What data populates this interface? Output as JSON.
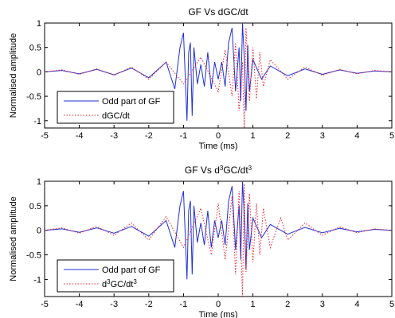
{
  "colors": {
    "odd_gf": "#1f2fd6",
    "derivative": "#e8242f",
    "axes": "#000000"
  },
  "chart_data": [
    {
      "type": "line",
      "title": "GF Vs dGC/dt",
      "title_parts": [
        {
          "text": "GF Vs dGC/dt"
        }
      ],
      "xlabel": "Time (ms)",
      "ylabel": "Normalised amplitude",
      "xlim": [
        -5,
        5
      ],
      "ylim": [
        -1.15,
        1
      ],
      "xticks": [
        -5,
        -4,
        -3,
        -2,
        -1,
        0,
        1,
        2,
        3,
        4,
        5
      ],
      "yticks": [
        -1,
        -0.5,
        0,
        0.5,
        1
      ],
      "grid": false,
      "legend_position": "bottom-left",
      "series": [
        {
          "name": "Odd part of GF",
          "name_parts": [
            {
              "text": "Odd part of GF"
            }
          ],
          "style": "solid",
          "color": "#1f2fd6",
          "x": [
            -5,
            -4.5,
            -4,
            -3.5,
            -3,
            -2.5,
            -2,
            -1.5,
            -1.25,
            -1.1,
            -1,
            -0.9,
            -0.85,
            -0.8,
            -0.75,
            -0.7,
            -0.6,
            -0.5,
            -0.4,
            -0.3,
            -0.2,
            -0.1,
            0,
            0.1,
            0.2,
            0.3,
            0.4,
            0.5,
            0.6,
            0.65,
            0.7,
            0.75,
            0.8,
            0.85,
            0.9,
            1,
            1.25,
            1.5,
            2,
            2.5,
            3,
            3.5,
            4,
            4.5,
            5
          ],
          "y": [
            0,
            0.03,
            -0.04,
            0.05,
            -0.06,
            0.08,
            -0.12,
            0.2,
            -0.35,
            0.5,
            0.8,
            -1.0,
            0.4,
            0.6,
            -0.9,
            0.5,
            -0.25,
            0.15,
            -0.3,
            0.4,
            -0.35,
            0.2,
            -0.15,
            0.2,
            -0.3,
            0.6,
            0.9,
            -0.4,
            0.5,
            -0.6,
            1.0,
            0.3,
            -0.8,
            0.55,
            -0.4,
            0.25,
            -0.15,
            0.12,
            -0.08,
            0.06,
            -0.05,
            0.04,
            -0.03,
            0.02,
            0
          ]
        },
        {
          "name": "dGC/dt",
          "name_parts": [
            {
              "text": "dGC/dt"
            }
          ],
          "style": "dotted",
          "color": "#e8242f",
          "x": [
            -5,
            -4.5,
            -4,
            -3.5,
            -3,
            -2.5,
            -2,
            -1.5,
            -1,
            -0.5,
            0,
            0.2,
            0.4,
            0.5,
            0.6,
            0.7,
            0.75,
            0.8,
            0.9,
            1.0,
            1.1,
            1.2,
            1.3,
            1.5,
            2,
            2.5,
            3,
            3.5,
            4,
            4.5,
            5
          ],
          "y": [
            0,
            0.04,
            -0.05,
            0.06,
            -0.07,
            0.1,
            -0.15,
            0.2,
            -0.25,
            0.3,
            -0.4,
            0.45,
            -0.5,
            0.6,
            -0.8,
            0.2,
            -1.15,
            0.9,
            -0.6,
            0.5,
            -0.55,
            0.4,
            -0.3,
            0.25,
            -0.15,
            0.1,
            -0.07,
            0.05,
            -0.04,
            0.03,
            0
          ]
        }
      ]
    },
    {
      "type": "line",
      "title": "GF Vs d3GC/dt3",
      "title_parts": [
        {
          "text": "GF Vs d"
        },
        {
          "text": "3",
          "sup": true
        },
        {
          "text": "GC/dt"
        },
        {
          "text": "3",
          "sup": true
        }
      ],
      "xlabel": "Time (ms)",
      "ylabel": "Normalised amplitude",
      "xlim": [
        -5,
        5
      ],
      "ylim": [
        -1.35,
        1
      ],
      "xticks": [
        -5,
        -4,
        -3,
        -2,
        -1,
        0,
        1,
        2,
        3,
        4,
        5
      ],
      "yticks": [
        -1,
        -0.5,
        0,
        0.5,
        1
      ],
      "grid": false,
      "legend_position": "bottom-left",
      "series": [
        {
          "name": "Odd part of GF",
          "name_parts": [
            {
              "text": "Odd part of GF"
            }
          ],
          "style": "solid",
          "color": "#1f2fd6",
          "x": [
            -5,
            -4.5,
            -4,
            -3.5,
            -3,
            -2.5,
            -2,
            -1.5,
            -1.25,
            -1.1,
            -1,
            -0.9,
            -0.85,
            -0.8,
            -0.75,
            -0.7,
            -0.6,
            -0.5,
            -0.4,
            -0.3,
            -0.2,
            -0.1,
            0,
            0.1,
            0.2,
            0.3,
            0.4,
            0.5,
            0.6,
            0.65,
            0.7,
            0.75,
            0.8,
            0.85,
            0.9,
            1,
            1.25,
            1.5,
            2,
            2.5,
            3,
            3.5,
            4,
            4.5,
            5
          ],
          "y": [
            0,
            0.03,
            -0.04,
            0.05,
            -0.06,
            0.08,
            -0.12,
            0.2,
            -0.35,
            0.5,
            0.8,
            -1.0,
            0.4,
            0.6,
            -0.9,
            0.5,
            -0.25,
            0.15,
            -0.3,
            0.4,
            -0.35,
            0.2,
            -0.15,
            0.2,
            -0.3,
            0.6,
            0.9,
            -0.4,
            0.5,
            -0.6,
            1.0,
            0.3,
            -0.8,
            0.55,
            -0.4,
            0.25,
            -0.15,
            0.12,
            -0.08,
            0.06,
            -0.05,
            0.04,
            -0.03,
            0.02,
            0
          ]
        },
        {
          "name": "d3GC/dt3",
          "name_parts": [
            {
              "text": "d"
            },
            {
              "text": "3",
              "sup": true
            },
            {
              "text": "GC/dt"
            },
            {
              "text": "3",
              "sup": true
            }
          ],
          "style": "dotted",
          "color": "#e8242f",
          "x": [
            -5,
            -4.5,
            -4,
            -3.5,
            -3,
            -2.5,
            -2,
            -1.5,
            -1,
            -0.5,
            -0.2,
            0,
            0.2,
            0.4,
            0.5,
            0.6,
            0.7,
            0.75,
            0.8,
            0.9,
            1.0,
            1.1,
            1.2,
            1.3,
            1.5,
            1.8,
            2,
            2.5,
            3,
            3.5,
            4,
            4.5,
            5
          ],
          "y": [
            0,
            0.05,
            -0.06,
            0.08,
            -0.1,
            0.15,
            -0.2,
            0.28,
            -0.35,
            0.45,
            -0.5,
            0.55,
            -0.6,
            0.7,
            -0.9,
            0.8,
            -1.35,
            0.95,
            -0.85,
            0.75,
            -0.65,
            0.55,
            -0.5,
            0.45,
            -0.35,
            0.25,
            -0.2,
            0.15,
            -0.1,
            0.07,
            -0.05,
            0.03,
            0
          ]
        }
      ]
    }
  ]
}
